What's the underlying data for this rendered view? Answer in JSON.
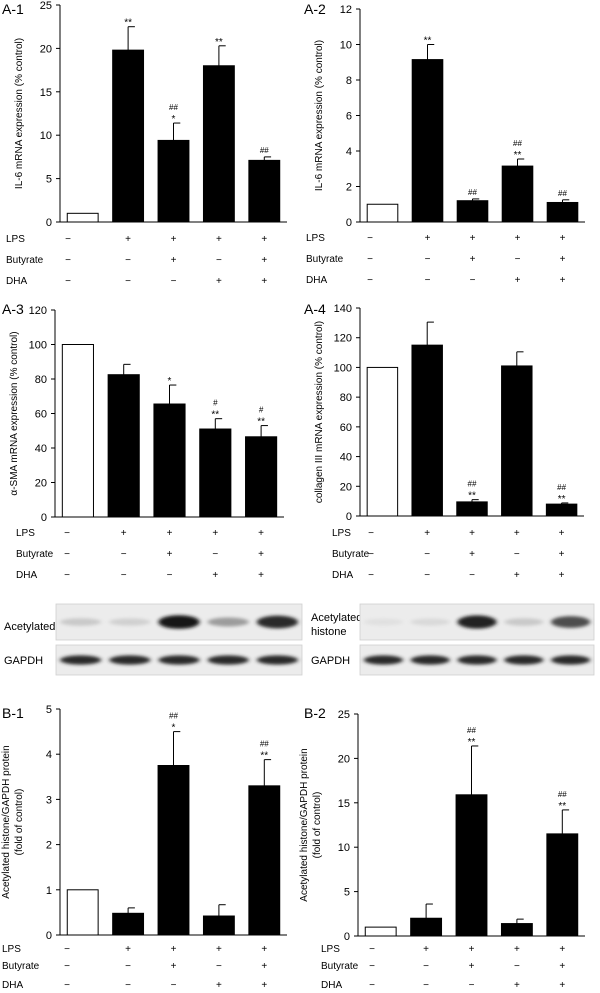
{
  "treatments": {
    "labels": [
      "LPS",
      "Butyrate",
      "DHA"
    ],
    "rows": [
      [
        "−",
        "+",
        "+",
        "+",
        "+"
      ],
      [
        "−",
        "−",
        "+",
        "−",
        "+"
      ],
      [
        "−",
        "−",
        "−",
        "+",
        "+"
      ]
    ]
  },
  "chart_data": [
    {
      "id": "A-1",
      "panel_label": "A-1",
      "type": "bar",
      "ylabel": "IL-6 mRNA expression (% control)",
      "ylim": [
        0,
        25
      ],
      "yticks": [
        0,
        5,
        10,
        15,
        20,
        25
      ],
      "values": [
        1,
        19.8,
        9.4,
        18.0,
        7.1
      ],
      "errors": [
        0,
        2.7,
        2.0,
        2.3,
        0.4
      ],
      "bar_fill": [
        "white",
        "black",
        "black",
        "black",
        "black"
      ],
      "annotations": [
        [],
        [
          "**"
        ],
        [
          "##",
          "*"
        ],
        [
          "**"
        ],
        [
          "##"
        ]
      ]
    },
    {
      "id": "A-2",
      "panel_label": "A-2",
      "type": "bar",
      "ylabel": "IL-6 mRNA expression (% control)",
      "ylim": [
        0,
        12
      ],
      "yticks": [
        0,
        2,
        4,
        6,
        8,
        10,
        12
      ],
      "values": [
        1,
        9.15,
        1.2,
        3.15,
        1.1
      ],
      "errors": [
        0,
        0.85,
        0.1,
        0.4,
        0.15
      ],
      "bar_fill": [
        "white",
        "black",
        "black",
        "black",
        "black"
      ],
      "annotations": [
        [],
        [
          "**"
        ],
        [
          "##"
        ],
        [
          "##",
          "**"
        ],
        [
          "##"
        ]
      ]
    },
    {
      "id": "A-3",
      "panel_label": "A-3",
      "type": "bar",
      "ylabel": "α-SMA mRNA expression (% control)",
      "ylim": [
        0,
        120
      ],
      "yticks": [
        0,
        20,
        40,
        60,
        80,
        100,
        120
      ],
      "values": [
        100,
        82.5,
        65.5,
        51,
        46.5
      ],
      "errors": [
        0,
        6,
        11,
        6,
        6.5
      ],
      "bar_fill": [
        "white",
        "black",
        "black",
        "black",
        "black"
      ],
      "annotations": [
        [],
        [],
        [
          "*"
        ],
        [
          "#",
          "**"
        ],
        [
          "#",
          "**"
        ]
      ]
    },
    {
      "id": "A-4",
      "panel_label": "A-4",
      "type": "bar",
      "ylabel": "collagen III mRNA expression (% control)",
      "ylim": [
        0,
        140
      ],
      "yticks": [
        0,
        20,
        40,
        60,
        80,
        100,
        120,
        140
      ],
      "values": [
        100,
        115,
        9.5,
        101,
        8
      ],
      "errors": [
        0,
        15.5,
        1.5,
        9.5,
        0.8
      ],
      "bar_fill": [
        "white",
        "black",
        "black",
        "black",
        "black"
      ],
      "annotations": [
        [],
        [],
        [
          "##",
          "**"
        ],
        [],
        [
          "##",
          "**"
        ]
      ]
    },
    {
      "id": "B-1",
      "panel_label": "B-1",
      "type": "bar",
      "ylabel": [
        "Acetylated histone/GAPDH protein",
        "(fold of control)"
      ],
      "ylim": [
        0,
        5
      ],
      "yticks": [
        0,
        1,
        2,
        3,
        4,
        5
      ],
      "values": [
        1,
        0.48,
        3.75,
        0.42,
        3.3
      ],
      "errors": [
        0,
        0.12,
        0.75,
        0.25,
        0.58
      ],
      "bar_fill": [
        "white",
        "black",
        "black",
        "black",
        "black"
      ],
      "annotations": [
        [],
        [],
        [
          "##",
          "*"
        ],
        [],
        [
          "##",
          "**"
        ]
      ]
    },
    {
      "id": "B-2",
      "panel_label": "B-2",
      "type": "bar",
      "ylabel": [
        "Acetylated histone/GAPDH protein",
        "(fold of control)"
      ],
      "ylim": [
        0,
        25
      ],
      "yticks": [
        0,
        5,
        10,
        15,
        20,
        25
      ],
      "values": [
        1,
        2,
        15.9,
        1.4,
        11.5
      ],
      "errors": [
        0,
        1.6,
        5.5,
        0.5,
        2.7
      ],
      "bar_fill": [
        "white",
        "black",
        "black",
        "black",
        "black"
      ],
      "annotations": [
        [],
        [],
        [
          "##",
          "**"
        ],
        [],
        [
          "##",
          "**"
        ]
      ]
    }
  ],
  "blots": [
    {
      "id": "left",
      "label_acetyl": "Acetylated histone",
      "label_gapdh": "GAPDH",
      "acetyl_intensity": [
        0.15,
        0.12,
        0.95,
        0.35,
        0.85
      ],
      "gapdh_intensity": [
        0.85,
        0.85,
        0.85,
        0.85,
        0.85
      ]
    },
    {
      "id": "right",
      "label_acetyl": [
        "Acetylated",
        "histone"
      ],
      "label_gapdh": "GAPDH",
      "acetyl_intensity": [
        0.05,
        0.08,
        0.9,
        0.15,
        0.7
      ],
      "gapdh_intensity": [
        0.85,
        0.85,
        0.85,
        0.85,
        0.85
      ]
    }
  ]
}
